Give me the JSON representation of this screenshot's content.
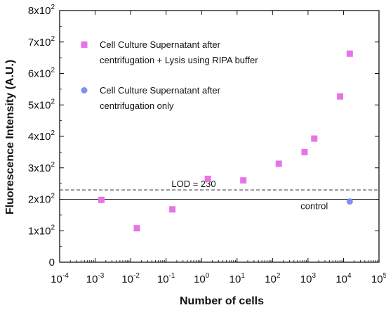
{
  "chart_data": {
    "type": "scatter",
    "xlabel": "Number of cells",
    "ylabel": "Fluorescence Intensity (A.U.)",
    "x_scale": "log",
    "xlim": [
      0.0001,
      100000
    ],
    "ylim": [
      0,
      800
    ],
    "x_ticks": [
      {
        "value": 0.0001,
        "base": "10",
        "exp": "-4"
      },
      {
        "value": 0.001,
        "base": "10",
        "exp": "-3"
      },
      {
        "value": 0.01,
        "base": "10",
        "exp": "-2"
      },
      {
        "value": 0.1,
        "base": "10",
        "exp": "-1"
      },
      {
        "value": 1,
        "base": "10",
        "exp": "0"
      },
      {
        "value": 10,
        "base": "10",
        "exp": "1"
      },
      {
        "value": 100,
        "base": "10",
        "exp": "2"
      },
      {
        "value": 1000,
        "base": "10",
        "exp": "3"
      },
      {
        "value": 10000,
        "base": "10",
        "exp": "4"
      },
      {
        "value": 100000,
        "base": "10",
        "exp": "5"
      }
    ],
    "y_ticks": [
      {
        "value": 0,
        "text": "0"
      },
      {
        "value": 100,
        "base": "1x10",
        "exp": "2"
      },
      {
        "value": 200,
        "base": "2x10",
        "exp": "2"
      },
      {
        "value": 300,
        "base": "3x10",
        "exp": "2"
      },
      {
        "value": 400,
        "base": "4x10",
        "exp": "2"
      },
      {
        "value": 500,
        "base": "5x10",
        "exp": "2"
      },
      {
        "value": 600,
        "base": "6x10",
        "exp": "2"
      },
      {
        "value": 700,
        "base": "7x10",
        "exp": "2"
      },
      {
        "value": 800,
        "base": "8x10",
        "exp": "2"
      }
    ],
    "grid": false,
    "legend_position": "top-left",
    "series": [
      {
        "name_lines": [
          "Cell Culture Supernatant after",
          "centrifugation + Lysis using RIPA buffer"
        ],
        "marker": "square",
        "color": "#e674e6",
        "points": [
          [
            0.0015,
            198
          ],
          [
            0.015,
            108
          ],
          [
            0.15,
            168
          ],
          [
            1.5,
            265
          ],
          [
            15,
            260
          ],
          [
            150,
            313
          ],
          [
            800,
            350
          ],
          [
            1500,
            393
          ],
          [
            8000,
            527
          ],
          [
            15000,
            663
          ]
        ]
      },
      {
        "name_lines": [
          "Cell Culture Supernatant after",
          "centrifugation only"
        ],
        "marker": "circle",
        "color": "#7f8ef0",
        "points": [
          [
            15000,
            193
          ]
        ]
      }
    ],
    "reference_lines": [
      {
        "y": 230,
        "style": "dashed",
        "label": "LOD = 230",
        "label_x": 0.6
      },
      {
        "y": 200,
        "style": "solid",
        "label": "control",
        "label_x": 1500
      }
    ]
  }
}
